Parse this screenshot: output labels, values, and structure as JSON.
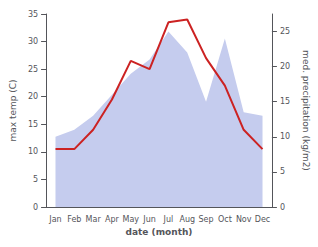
{
  "chart_data": {
    "type": "line",
    "categories": [
      "Jan",
      "Feb",
      "Mar",
      "Apr",
      "May",
      "Jun",
      "Jul",
      "Aug",
      "Sep",
      "Oct",
      "Nov",
      "Dec"
    ],
    "xlabel": "date (month)",
    "ylabel": "max temp (C)",
    "y2label": "med. precipitation (kg/m2)",
    "ylim": [
      0,
      35
    ],
    "yticks": [
      0,
      5,
      10,
      15,
      20,
      25,
      30,
      35
    ],
    "y2lim": [
      0,
      27.5
    ],
    "y2ticks": [
      0,
      5,
      10,
      15,
      20,
      25
    ],
    "grid": false,
    "series": [
      {
        "type": "area",
        "color": "#c5ccee",
        "axis": "y2",
        "values": [
          10.0,
          11.0,
          13.0,
          16.0,
          19.0,
          21.0,
          25.0,
          22.0,
          15.0,
          24.0,
          13.5,
          13.0
        ]
      },
      {
        "type": "line",
        "color": "#cc2222",
        "values": [
          10.5,
          10.5,
          14.0,
          19.5,
          26.5,
          25.0,
          33.5,
          34.0,
          27.0,
          22.0,
          14.0,
          10.5
        ]
      }
    ]
  }
}
